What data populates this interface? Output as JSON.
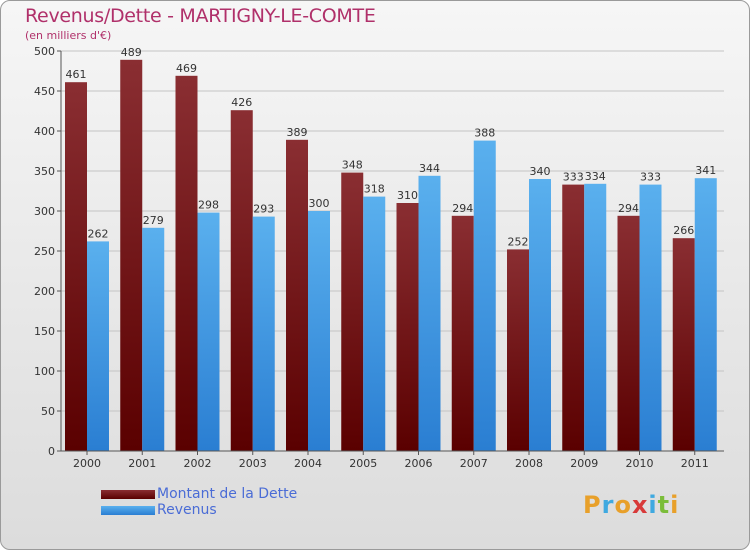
{
  "header": {
    "title": "Revenus/Dette - MARTIGNY-LE-COMTE",
    "subtitle": "(en milliers d'€)"
  },
  "colors": {
    "dette": "#7a0f12",
    "revenus": "#3f9fe3",
    "title": "#b0306a",
    "legend_text": "#4a6cd6"
  },
  "chart_data": {
    "type": "bar",
    "categories": [
      "2000",
      "2001",
      "2002",
      "2003",
      "2004",
      "2005",
      "2006",
      "2007",
      "2008",
      "2009",
      "2010",
      "2011"
    ],
    "series": [
      {
        "name": "Montant de la Dette",
        "values": [
          461,
          489,
          469,
          426,
          389,
          348,
          310,
          294,
          252,
          333,
          294,
          266
        ]
      },
      {
        "name": "Revenus",
        "values": [
          262,
          279,
          298,
          293,
          300,
          318,
          344,
          388,
          340,
          334,
          333,
          341
        ]
      }
    ],
    "yticks": [
      0,
      50,
      100,
      150,
      200,
      250,
      300,
      350,
      400,
      450,
      500
    ],
    "ylim": [
      0,
      500
    ],
    "grid": true,
    "legend_position": "bottom-left"
  },
  "legend": {
    "items": [
      {
        "label": "Montant de la Dette"
      },
      {
        "label": "Revenus"
      }
    ]
  },
  "logo": {
    "letters": [
      {
        "ch": "P",
        "color": "#e8a02a"
      },
      {
        "ch": "r",
        "color": "#3fa9e0"
      },
      {
        "ch": "o",
        "color": "#e8a02a"
      },
      {
        "ch": "x",
        "color": "#d83a3a"
      },
      {
        "ch": "i",
        "color": "#3fa9e0"
      },
      {
        "ch": "t",
        "color": "#7bbd3a"
      },
      {
        "ch": "i",
        "color": "#e8a02a"
      }
    ]
  }
}
